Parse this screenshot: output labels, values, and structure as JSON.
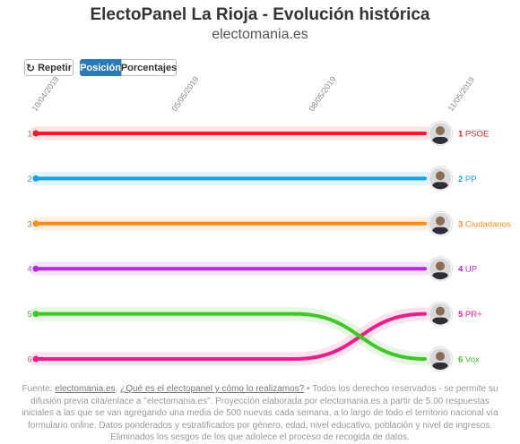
{
  "title": "ElectoPanel La Rioja - Evolución histórica",
  "subtitle": "electomania.es",
  "controls": {
    "repeat_label": "Repetir",
    "position_label": "Posición",
    "percent_label": "Porcentajes"
  },
  "chart_data": {
    "type": "line",
    "y_axis": "rank",
    "ylim": [
      1,
      6
    ],
    "y_inverted": true,
    "x": [
      "10/04/2019",
      "05/05/2019",
      "08/05/2019",
      "11/05/2019"
    ],
    "series": [
      {
        "name": "PSOE",
        "rank_label": "1",
        "color": "#ee1c25",
        "values": [
          1,
          1,
          1,
          1
        ]
      },
      {
        "name": "PP",
        "rank_label": "2",
        "color": "#1ba0e2",
        "values": [
          2,
          2,
          2,
          2
        ]
      },
      {
        "name": "Ciudadanos",
        "rank_label": "3",
        "color": "#f78b1e",
        "values": [
          3,
          3,
          3,
          3
        ]
      },
      {
        "name": "UP",
        "rank_label": "4",
        "color": "#b52ad8",
        "values": [
          4,
          4,
          4,
          4
        ]
      },
      {
        "name": "PR+",
        "rank_label": "5",
        "color": "#ec1f87",
        "values": [
          6,
          6,
          6,
          5
        ]
      },
      {
        "name": "Vox",
        "rank_label": "6",
        "color": "#3fc627",
        "values": [
          5,
          5,
          5,
          6
        ]
      }
    ],
    "y_tick_labels": [
      "1",
      "2",
      "3",
      "4",
      "5",
      "6"
    ],
    "grid": false,
    "legend": "right-end labels"
  },
  "footer": {
    "source_prefix": "Fuente: ",
    "source_link": "electomania.es",
    "separator": ", ",
    "question_link": "¿Qué es el electopanel y cómo lo realizamos?",
    "body": " • Todos los derechos reservados - se permite su difusión previa cita/enlace a \"electomania.es\". Proyección elaborada por electomania.es a partir de 5.00 respuestas iniciales a las que se van agregando una media de 500 nuevas cada semana, a lo largo de todo el territorio nacional vía formulario online. Datos ponderados y estratificados por género, edad, nivel educativo, población y nivel de ingresos. Eliminados los sesgos de los que adolece el proceso de recogida de datos."
  }
}
